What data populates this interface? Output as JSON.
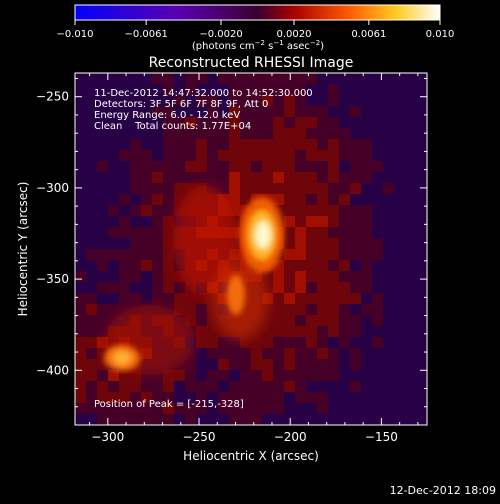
{
  "chart_data": {
    "type": "heatmap",
    "title": "Reconstructed RHESSI Image",
    "xlabel": "Heliocentric X (arcsec)",
    "ylabel": "Heliocentric Y (arcsec)",
    "xlim": [
      -318,
      -125
    ],
    "ylim": [
      -430,
      -237
    ],
    "x_ticks": [
      {
        "value": -300,
        "label": "−300"
      },
      {
        "value": -250,
        "label": "−250"
      },
      {
        "value": -200,
        "label": "−200"
      },
      {
        "value": -150,
        "label": "−150"
      }
    ],
    "y_ticks": [
      {
        "value": -250,
        "label": "−250"
      },
      {
        "value": -300,
        "label": "−300"
      },
      {
        "value": -350,
        "label": "−350"
      },
      {
        "value": -400,
        "label": "−400"
      }
    ],
    "colorbar": {
      "range": [
        -0.01,
        0.01
      ],
      "ticks": [
        {
          "value": -0.01,
          "label": "−0.010"
        },
        {
          "value": -0.0061,
          "label": "−0.0061"
        },
        {
          "value": -0.002,
          "label": "−0.0020"
        },
        {
          "value": 0.002,
          "label": "0.0020"
        },
        {
          "value": 0.0061,
          "label": "0.0061"
        },
        {
          "value": 0.01,
          "label": "0.010"
        }
      ],
      "units_main": "(photons cm",
      "units_exp1": "−2",
      "units_mid": " s",
      "units_exp2": "−1",
      "units_tail": " asec",
      "units_exp3": "−2",
      "units_close": ")",
      "colors": [
        "#0000ff",
        "#5a00b0",
        "#3a0030",
        "#aa0000",
        "#ff5a00",
        "#ffcc20",
        "#ffffff"
      ]
    },
    "annotations": [
      "11-Dec-2012 14:47:32.000 to 14:52:30.000",
      "Detectors: 3F 5F 6F 7F 8F 9F, Att 0",
      "Energy Range: 6.0 - 12.0 keV",
      "Clean    Total counts: 1.77E+04"
    ],
    "peak_label": "Position of Peak = [-215,-328]",
    "peak": [
      -215,
      -328
    ],
    "secondary_source": [
      -292,
      -392
    ]
  },
  "footer_date": "12-Dec-2012 18:09"
}
